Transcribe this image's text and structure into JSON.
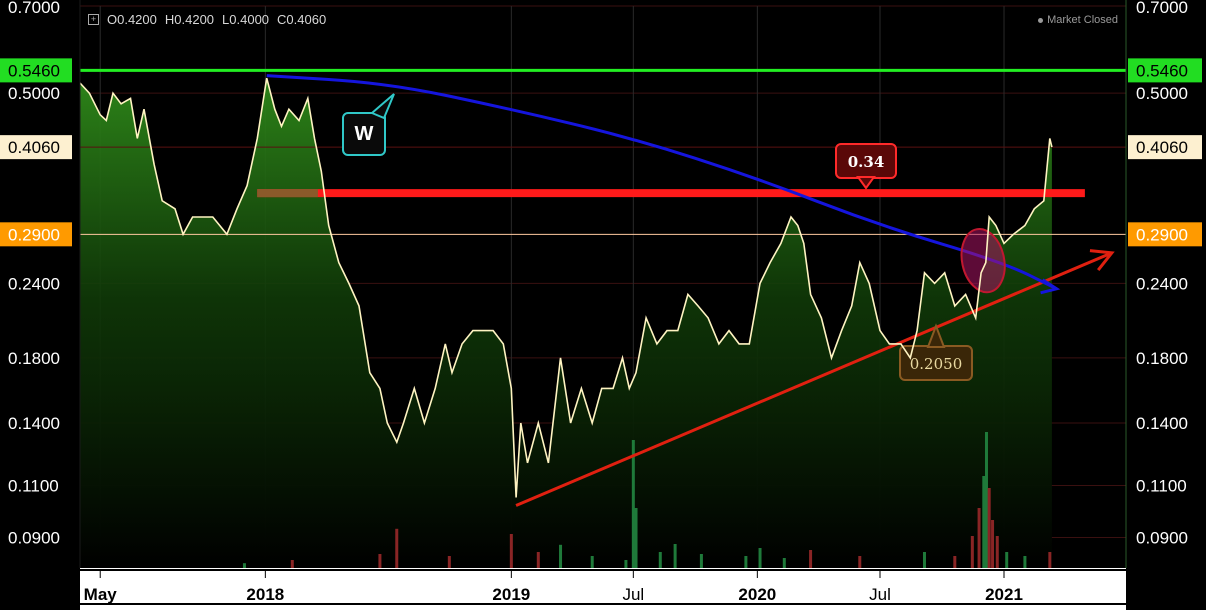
{
  "ohlc": {
    "open": "O0.4200",
    "high": "H0.4200",
    "low": "L0.4000",
    "close": "C0.4060"
  },
  "market_status": "Market Closed",
  "chart_data": {
    "type": "line",
    "y_scale": "log",
    "ylim": [
      0.08,
      0.7
    ],
    "y_ticks": [
      {
        "value": 0.7,
        "label": "0.7000"
      },
      {
        "value": 0.5,
        "label": "0.5000"
      },
      {
        "value": 0.24,
        "label": "0.2400"
      },
      {
        "value": 0.18,
        "label": "0.1800"
      },
      {
        "value": 0.14,
        "label": "0.1400"
      },
      {
        "value": 0.11,
        "label": "0.1100"
      },
      {
        "value": 0.09,
        "label": "0.0900"
      }
    ],
    "price_tags": [
      {
        "value": 0.546,
        "label": "0.5460",
        "bg": "#22dd22",
        "fg": "#000000"
      },
      {
        "value": 0.406,
        "label": "0.4060",
        "bg": "#fdf0d0",
        "fg": "#000000"
      },
      {
        "value": 0.29,
        "label": "0.2900",
        "bg": "#ff9a00",
        "fg": "#ffffff"
      }
    ],
    "x_ticks": [
      {
        "date": "2017-05-01",
        "label": "May",
        "bold": true
      },
      {
        "date": "2018-01-01",
        "label": "2018",
        "bold": true
      },
      {
        "date": "2019-01-01",
        "label": "2019",
        "bold": true
      },
      {
        "date": "2019-07-01",
        "label": "Jul",
        "bold": false
      },
      {
        "date": "2020-01-01",
        "label": "2020",
        "bold": true
      },
      {
        "date": "2020-07-01",
        "label": "Jul",
        "bold": false
      },
      {
        "date": "2021-01-01",
        "label": "2021",
        "bold": true
      }
    ],
    "x_range": [
      "2017-04-01",
      "2021-07-01"
    ],
    "series": [
      {
        "color": "#fff4c2",
        "points": [
          [
            "2017-04-01",
            0.52
          ],
          [
            "2017-04-15",
            0.5
          ],
          [
            "2017-05-01",
            0.46
          ],
          [
            "2017-05-10",
            0.45
          ],
          [
            "2017-05-20",
            0.5
          ],
          [
            "2017-06-01",
            0.48
          ],
          [
            "2017-06-15",
            0.49
          ],
          [
            "2017-06-25",
            0.42
          ],
          [
            "2017-07-05",
            0.47
          ],
          [
            "2017-07-20",
            0.38
          ],
          [
            "2017-08-01",
            0.33
          ],
          [
            "2017-08-20",
            0.32
          ],
          [
            "2017-09-01",
            0.29
          ],
          [
            "2017-09-15",
            0.31
          ],
          [
            "2017-10-15",
            0.31
          ],
          [
            "2017-11-05",
            0.29
          ],
          [
            "2017-11-20",
            0.32
          ],
          [
            "2017-12-05",
            0.35
          ],
          [
            "2017-12-20",
            0.42
          ],
          [
            "2018-01-03",
            0.53
          ],
          [
            "2018-01-15",
            0.47
          ],
          [
            "2018-01-25",
            0.44
          ],
          [
            "2018-02-05",
            0.47
          ],
          [
            "2018-02-20",
            0.45
          ],
          [
            "2018-03-05",
            0.49
          ],
          [
            "2018-03-15",
            0.42
          ],
          [
            "2018-03-25",
            0.37
          ],
          [
            "2018-04-05",
            0.3
          ],
          [
            "2018-04-20",
            0.26
          ],
          [
            "2018-05-05",
            0.24
          ],
          [
            "2018-05-20",
            0.22
          ],
          [
            "2018-06-05",
            0.17
          ],
          [
            "2018-06-20",
            0.16
          ],
          [
            "2018-07-01",
            0.14
          ],
          [
            "2018-07-15",
            0.13
          ],
          [
            "2018-07-25",
            0.14
          ],
          [
            "2018-08-10",
            0.16
          ],
          [
            "2018-08-25",
            0.14
          ],
          [
            "2018-09-10",
            0.16
          ],
          [
            "2018-09-25",
            0.19
          ],
          [
            "2018-10-05",
            0.17
          ],
          [
            "2018-10-20",
            0.19
          ],
          [
            "2018-11-05",
            0.2
          ],
          [
            "2018-11-20",
            0.2
          ],
          [
            "2018-12-05",
            0.2
          ],
          [
            "2018-12-20",
            0.19
          ],
          [
            "2019-01-01",
            0.16
          ],
          [
            "2019-01-08",
            0.105
          ],
          [
            "2019-01-15",
            0.14
          ],
          [
            "2019-01-25",
            0.12
          ],
          [
            "2019-02-10",
            0.14
          ],
          [
            "2019-02-25",
            0.12
          ],
          [
            "2019-03-15",
            0.18
          ],
          [
            "2019-03-30",
            0.14
          ],
          [
            "2019-04-15",
            0.16
          ],
          [
            "2019-05-01",
            0.14
          ],
          [
            "2019-05-15",
            0.16
          ],
          [
            "2019-06-01",
            0.16
          ],
          [
            "2019-06-15",
            0.18
          ],
          [
            "2019-06-25",
            0.16
          ],
          [
            "2019-07-05",
            0.17
          ],
          [
            "2019-07-20",
            0.21
          ],
          [
            "2019-08-05",
            0.19
          ],
          [
            "2019-08-20",
            0.2
          ],
          [
            "2019-09-05",
            0.2
          ],
          [
            "2019-09-20",
            0.23
          ],
          [
            "2019-10-05",
            0.22
          ],
          [
            "2019-10-20",
            0.21
          ],
          [
            "2019-11-05",
            0.19
          ],
          [
            "2019-11-20",
            0.2
          ],
          [
            "2019-12-05",
            0.19
          ],
          [
            "2019-12-20",
            0.19
          ],
          [
            "2020-01-05",
            0.24
          ],
          [
            "2020-01-20",
            0.26
          ],
          [
            "2020-02-05",
            0.28
          ],
          [
            "2020-02-20",
            0.31
          ],
          [
            "2020-03-01",
            0.3
          ],
          [
            "2020-03-10",
            0.28
          ],
          [
            "2020-03-20",
            0.23
          ],
          [
            "2020-04-05",
            0.21
          ],
          [
            "2020-04-20",
            0.18
          ],
          [
            "2020-05-05",
            0.2
          ],
          [
            "2020-05-20",
            0.22
          ],
          [
            "2020-06-01",
            0.26
          ],
          [
            "2020-06-15",
            0.24
          ],
          [
            "2020-07-01",
            0.2
          ],
          [
            "2020-07-15",
            0.19
          ],
          [
            "2020-08-01",
            0.19
          ],
          [
            "2020-08-15",
            0.18
          ],
          [
            "2020-08-25",
            0.2
          ],
          [
            "2020-09-05",
            0.25
          ],
          [
            "2020-09-20",
            0.24
          ],
          [
            "2020-10-05",
            0.25
          ],
          [
            "2020-10-20",
            0.22
          ],
          [
            "2020-11-05",
            0.23
          ],
          [
            "2020-11-20",
            0.21
          ],
          [
            "2020-11-28",
            0.25
          ],
          [
            "2020-12-05",
            0.26
          ],
          [
            "2020-12-10",
            0.31
          ],
          [
            "2020-12-20",
            0.3
          ],
          [
            "2021-01-01",
            0.28
          ],
          [
            "2021-01-15",
            0.29
          ],
          [
            "2021-02-01",
            0.3
          ],
          [
            "2021-02-15",
            0.32
          ],
          [
            "2021-03-01",
            0.33
          ],
          [
            "2021-03-10",
            0.42
          ],
          [
            "2021-03-13",
            0.406
          ]
        ]
      }
    ],
    "volume": [
      [
        "2017-12-01",
        0.0012,
        "up"
      ],
      [
        "2018-02-10",
        0.002,
        "down"
      ],
      [
        "2018-06-20",
        0.0035,
        "down"
      ],
      [
        "2018-07-15",
        0.0098,
        "down"
      ],
      [
        "2018-10-01",
        0.003,
        "down"
      ],
      [
        "2019-01-01",
        0.0085,
        "down"
      ],
      [
        "2019-02-10",
        0.004,
        "down"
      ],
      [
        "2019-03-15",
        0.0058,
        "up"
      ],
      [
        "2019-05-01",
        0.003,
        "up"
      ],
      [
        "2019-06-20",
        0.002,
        "up"
      ],
      [
        "2019-07-01",
        0.032,
        "up"
      ],
      [
        "2019-07-05",
        0.015,
        "up"
      ],
      [
        "2019-08-10",
        0.004,
        "up"
      ],
      [
        "2019-09-01",
        0.006,
        "up"
      ],
      [
        "2019-10-10",
        0.0035,
        "up"
      ],
      [
        "2019-12-15",
        0.003,
        "up"
      ],
      [
        "2020-01-05",
        0.005,
        "up"
      ],
      [
        "2020-02-10",
        0.0025,
        "up"
      ],
      [
        "2020-03-20",
        0.0045,
        "down"
      ],
      [
        "2020-06-01",
        0.003,
        "down"
      ],
      [
        "2020-09-05",
        0.004,
        "up"
      ],
      [
        "2020-10-20",
        0.003,
        "down"
      ],
      [
        "2020-11-15",
        0.008,
        "down"
      ],
      [
        "2020-11-25",
        0.015,
        "down"
      ],
      [
        "2020-12-02",
        0.023,
        "up"
      ],
      [
        "2020-12-06",
        0.034,
        "up"
      ],
      [
        "2020-12-10",
        0.02,
        "down"
      ],
      [
        "2020-12-15",
        0.012,
        "down"
      ],
      [
        "2020-12-22",
        0.008,
        "down"
      ],
      [
        "2021-01-05",
        0.004,
        "up"
      ],
      [
        "2021-02-01",
        0.003,
        "up"
      ],
      [
        "2021-03-10",
        0.004,
        "down"
      ]
    ],
    "levels": [
      {
        "value": 0.546,
        "color": "#22ee22",
        "width": 3
      },
      {
        "value": 0.29,
        "color": "#ffc9a0",
        "width": 1
      },
      {
        "value": 0.406,
        "color": "#5a1010",
        "width": 1
      }
    ],
    "annotations": {
      "resistance": {
        "value": 0.34,
        "from": "2017-12-20",
        "to": "2021-05-01",
        "color": "#ff1a1a"
      },
      "resistance_label": "0.34",
      "support_label": "0.2050",
      "w_label": "W",
      "trendline": {
        "from": [
          "2019-01-08",
          0.105
        ],
        "to": [
          "2021-06-10",
          0.27
        ],
        "color": "#e02010"
      },
      "arc": {
        "color": "#1515dd",
        "points": [
          [
            "2018-01-03",
            0.535
          ],
          [
            "2018-07-01",
            0.52
          ],
          [
            "2019-01-01",
            0.47
          ],
          [
            "2019-07-01",
            0.42
          ],
          [
            "2020-01-01",
            0.36
          ],
          [
            "2020-07-01",
            0.3
          ],
          [
            "2021-01-01",
            0.26
          ],
          [
            "2021-03-20",
            0.235
          ]
        ]
      }
    }
  }
}
